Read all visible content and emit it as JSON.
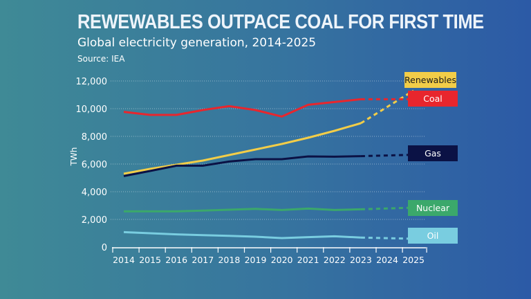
{
  "header": {
    "title": "REWEWABLES OUTPACE COAL FOR FIRST TIME",
    "subtitle": "Global electricity generation, 2014-2025",
    "source": "Source:  IEA"
  },
  "chart_data": {
    "type": "line",
    "title": "REWEWABLES OUTPACE COAL FOR FIRST TIME",
    "subtitle": "Global electricity generation, 2014-2025",
    "ylabel": "TWh",
    "xlabel": "",
    "ylim": [
      0,
      12000
    ],
    "yticks": [
      "0",
      "2,000",
      "4,000",
      "6,000",
      "8,000",
      "10,000",
      "12,000"
    ],
    "ytick_values": [
      0,
      2000,
      4000,
      6000,
      8000,
      10000,
      12000
    ],
    "x": [
      "2014",
      "2015",
      "2016",
      "2017",
      "2018",
      "2019",
      "2020",
      "2021",
      "2022",
      "2023",
      "2024",
      "2025"
    ],
    "grid": true,
    "legend": "direct labels at right",
    "note": "Solid lines to 2023, dashed projection 2023-2025",
    "series": [
      {
        "name": "Renewables",
        "color": "#f2cd48",
        "text_color": "#1a1a1a",
        "values": [
          5300,
          5650,
          5950,
          6250,
          6650,
          7050,
          7450,
          7900,
          8400,
          8950,
          null,
          11300
        ]
      },
      {
        "name": "Coal",
        "color": "#e8262d",
        "text_color": "#ffffff",
        "values": [
          9770,
          9550,
          9550,
          9900,
          10180,
          9900,
          9430,
          10280,
          10480,
          10680,
          null,
          10680
        ]
      },
      {
        "name": "Gas",
        "color": "#0b1245",
        "text_color": "#ffffff",
        "values": [
          5130,
          5500,
          5880,
          5880,
          6180,
          6350,
          6350,
          6550,
          6530,
          6570,
          null,
          6670
        ]
      },
      {
        "name": "Nuclear",
        "color": "#3ba86b",
        "text_color": "#ffffff",
        "values": [
          2580,
          2580,
          2580,
          2640,
          2700,
          2760,
          2680,
          2780,
          2680,
          2730,
          null,
          2850
        ]
      },
      {
        "name": "Oil",
        "color": "#79cde0",
        "text_color": "#ffffff",
        "values": [
          1080,
          1000,
          920,
          860,
          810,
          750,
          650,
          720,
          780,
          690,
          null,
          600
        ]
      }
    ]
  }
}
